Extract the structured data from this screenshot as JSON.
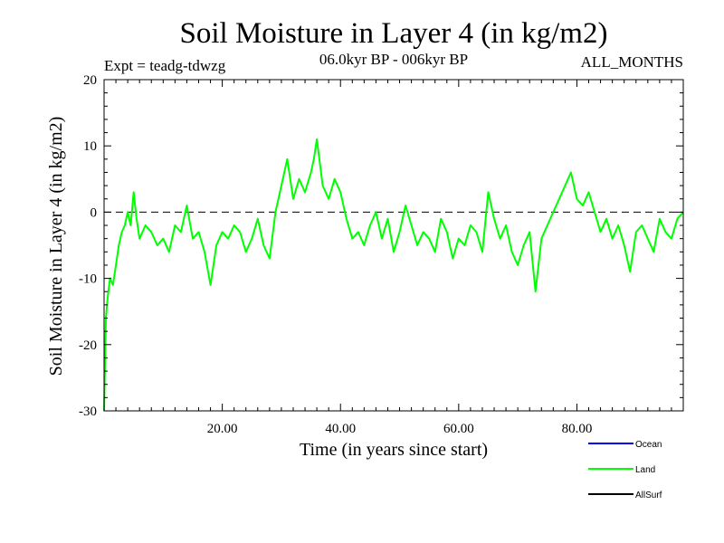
{
  "chart_data": {
    "type": "line",
    "title": "Soil Moisture in Layer 4 (in kg/m2)",
    "experiment": "Expt = teadg-tdwzg",
    "period": "06.0kyr BP - 006kyr BP",
    "season": "ALL_MONTHS",
    "xlabel": "Time (in years since start)",
    "ylabel": "Soil Moisture in Layer 4 (in kg/m2)",
    "xlim": [
      0,
      98
    ],
    "ylim": [
      -30,
      20
    ],
    "xticks": [
      20,
      40,
      60,
      80
    ],
    "xtick_labels": [
      "20.00",
      "40.00",
      "60.00",
      "80.00"
    ],
    "yticks": [
      -30,
      -20,
      -10,
      0,
      10,
      20
    ],
    "ytick_labels": [
      "-30",
      "-20",
      "-10",
      "0",
      "10",
      "20"
    ],
    "zero_line": "dashed",
    "legend": [
      {
        "name": "Ocean",
        "label": "Ocean",
        "color": "#0000ff"
      },
      {
        "name": "Land",
        "label": "Land",
        "color": "#00ff00"
      },
      {
        "name": "AllSurf",
        "label": "AllSurf",
        "color": "#000000"
      }
    ],
    "series": [
      {
        "name": "Land",
        "color": "#00ff00",
        "x": [
          0,
          0.3,
          0.6,
          1,
          1.5,
          2,
          2.5,
          3,
          3.5,
          4,
          4.5,
          5,
          5.5,
          6,
          7,
          8,
          9,
          10,
          11,
          12,
          13,
          14,
          15,
          16,
          17,
          18,
          19,
          20,
          21,
          22,
          23,
          24,
          25,
          26,
          27,
          28,
          29,
          30,
          31,
          32,
          33,
          34,
          35,
          35.5,
          36,
          37,
          38,
          39,
          40,
          41,
          42,
          43,
          44,
          45,
          46,
          47,
          48,
          49,
          50,
          51,
          52,
          53,
          54,
          55,
          56,
          57,
          58,
          59,
          60,
          61,
          62,
          63,
          64,
          65,
          66,
          67,
          68,
          69,
          70,
          71,
          72,
          73,
          74,
          75,
          76,
          77,
          78,
          79,
          80,
          81,
          82,
          83,
          84,
          85,
          86,
          87,
          88,
          89,
          90,
          91,
          92,
          93,
          94,
          95,
          96,
          97,
          98
        ],
        "values": [
          -30,
          -16,
          -13,
          -10,
          -11,
          -8,
          -5,
          -3,
          -2,
          0,
          -2,
          3,
          -1,
          -4,
          -2,
          -3,
          -5,
          -4,
          -6,
          -2,
          -3,
          1,
          -4,
          -3,
          -6,
          -11,
          -5,
          -3,
          -4,
          -2,
          -3,
          -6,
          -4,
          -1,
          -5,
          -7,
          0,
          4,
          8,
          2,
          5,
          3,
          6,
          8,
          11,
          4,
          2,
          5,
          3,
          -1,
          -4,
          -3,
          -5,
          -2,
          0,
          -4,
          -1,
          -6,
          -3,
          1,
          -2,
          -5,
          -3,
          -4,
          -6,
          -1,
          -3,
          -7,
          -4,
          -5,
          -2,
          -3,
          -6,
          3,
          -1,
          -4,
          -2,
          -6,
          -8,
          -5,
          -3,
          -12,
          -4,
          -2,
          0,
          2,
          4,
          6,
          2,
          1,
          3,
          0,
          -3,
          -1,
          -4,
          -2,
          -5,
          -9,
          -3,
          -2,
          -4,
          -6,
          -1,
          -3,
          -4,
          -1,
          0
        ]
      }
    ]
  }
}
